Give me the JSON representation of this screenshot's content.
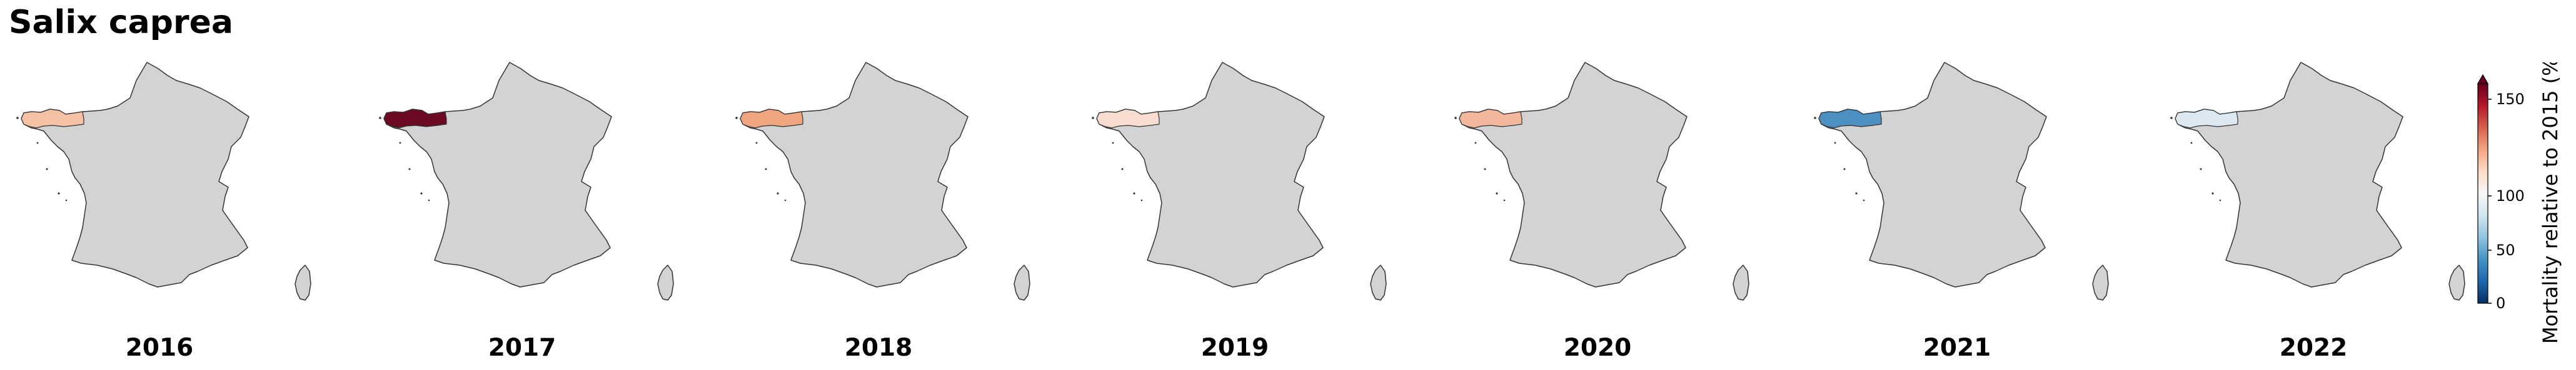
{
  "title": "Salix caprea",
  "colorbar": {
    "label": "Mortality relative to 2015 (%)",
    "ticks": [
      "0",
      "50",
      "100",
      "150"
    ],
    "extend": "max",
    "colors": [
      "#053061",
      "#2166ac",
      "#4393c3",
      "#92c5de",
      "#d1e5f0",
      "#f7f7f7",
      "#fddbc7",
      "#f4a582",
      "#d6604d",
      "#b2182b",
      "#67001f"
    ]
  },
  "map_style": {
    "land": "#d3d3d3",
    "border": "#333333"
  },
  "panels": [
    {
      "year": "2016",
      "region_color": "#f4c1a4"
    },
    {
      "year": "2017",
      "region_color": "#6b0a22"
    },
    {
      "year": "2018",
      "region_color": "#f0a47f"
    },
    {
      "year": "2019",
      "region_color": "#f6ddd0"
    },
    {
      "year": "2020",
      "region_color": "#f3b89b"
    },
    {
      "year": "2021",
      "region_color": "#4c8fc2"
    },
    {
      "year": "2022",
      "region_color": "#dde9f1"
    }
  ]
}
